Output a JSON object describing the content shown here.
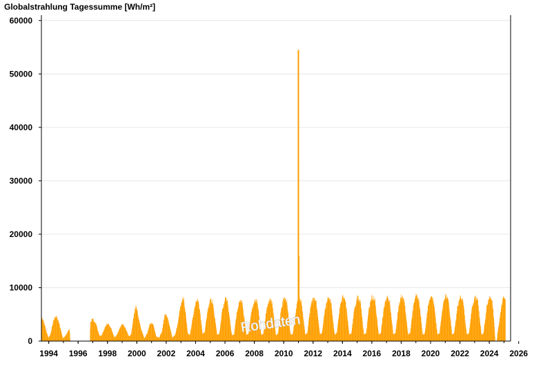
{
  "chart_data": {
    "type": "bar",
    "title": "Globalstrahlung Tagessumme [Wh/m²]",
    "watermark": "Rohdaten",
    "color": "#ff9f00",
    "gridline_color": "#e6e6e6",
    "xlim": [
      1993.5,
      2025.45
    ],
    "ylim": [
      0,
      61000
    ],
    "x_ticks": [
      1994,
      1996,
      1998,
      2000,
      2002,
      2004,
      2006,
      2008,
      2010,
      2012,
      2014,
      2016,
      2018,
      2020,
      2022,
      2024,
      2026
    ],
    "x_tick_labels": [
      "1994",
      "1996",
      "1998",
      "2000",
      "2002",
      "2004",
      "2006",
      "2008",
      "2010",
      "2012",
      "2014",
      "2016",
      "2018",
      "2020",
      "2022",
      "2024",
      "2026"
    ],
    "y_ticks": [
      0,
      10000,
      20000,
      30000,
      40000,
      50000,
      60000
    ],
    "y_tick_labels": [
      "0",
      "10000",
      "20000",
      "30000",
      "40000",
      "50000",
      "60000"
    ],
    "grid": true,
    "series": [
      {
        "values": [
          [
            1993.5,
            4500
          ],
          [
            1993.7,
            3200
          ],
          [
            1993.95,
            600
          ],
          [
            1994.1,
            1200
          ],
          [
            1994.3,
            3800
          ],
          [
            1994.5,
            4600
          ],
          [
            1994.7,
            3300
          ],
          [
            1994.95,
            500
          ],
          [
            1995.1,
            900
          ],
          [
            1995.3,
            1800
          ],
          [
            1995.4,
            2300
          ],
          [
            1995.45,
            0
          ],
          [
            1996.8,
            0
          ],
          [
            1996.82,
            3500
          ],
          [
            1996.95,
            4200
          ],
          [
            1997.2,
            3200
          ],
          [
            1997.45,
            900
          ],
          [
            1997.6,
            1100
          ],
          [
            1997.8,
            2500
          ],
          [
            1998.0,
            3400
          ],
          [
            1998.2,
            2600
          ],
          [
            1998.45,
            700
          ],
          [
            1998.6,
            1000
          ],
          [
            1998.8,
            2300
          ],
          [
            1999.0,
            3200
          ],
          [
            1999.2,
            2500
          ],
          [
            1999.45,
            800
          ],
          [
            1999.6,
            1300
          ],
          [
            1999.85,
            5800
          ],
          [
            1999.95,
            6600
          ],
          [
            2000.1,
            4500
          ],
          [
            2000.25,
            2400
          ],
          [
            2000.5,
            500
          ],
          [
            2000.7,
            1500
          ],
          [
            2000.9,
            3400
          ],
          [
            2001.1,
            3100
          ],
          [
            2001.3,
            900
          ],
          [
            2001.5,
            600
          ],
          [
            2001.7,
            1800
          ],
          [
            2001.9,
            5100
          ],
          [
            2002.1,
            4200
          ],
          [
            2002.4,
            600
          ],
          [
            2002.6,
            1200
          ],
          [
            2002.8,
            3600
          ],
          [
            2002.95,
            6600
          ],
          [
            2003.1,
            7900
          ],
          [
            2003.2,
            7700
          ],
          [
            2003.45,
            1500
          ],
          [
            2003.6,
            1100
          ],
          [
            2003.8,
            4400
          ],
          [
            2004.0,
            7300
          ],
          [
            2004.15,
            7700
          ],
          [
            2004.3,
            5200
          ],
          [
            2004.45,
            1400
          ],
          [
            2004.6,
            1600
          ],
          [
            2004.8,
            5500
          ],
          [
            2005.0,
            7700
          ],
          [
            2005.15,
            7300
          ],
          [
            2005.45,
            1200
          ],
          [
            2005.6,
            1300
          ],
          [
            2005.8,
            5600
          ],
          [
            2006.0,
            7900
          ],
          [
            2006.15,
            7500
          ],
          [
            2006.45,
            1100
          ],
          [
            2006.6,
            1200
          ],
          [
            2006.8,
            5400
          ],
          [
            2007.0,
            7600
          ],
          [
            2007.15,
            7400
          ],
          [
            2007.45,
            1100
          ],
          [
            2007.6,
            1400
          ],
          [
            2007.8,
            5600
          ],
          [
            2008.0,
            7700
          ],
          [
            2008.2,
            7400
          ],
          [
            2008.45,
            1200
          ],
          [
            2008.6,
            1300
          ],
          [
            2008.8,
            5600
          ],
          [
            2009.0,
            7800
          ],
          [
            2009.2,
            7200
          ],
          [
            2009.45,
            1100
          ],
          [
            2009.6,
            1400
          ],
          [
            2009.8,
            5800
          ],
          [
            2010.0,
            8200
          ],
          [
            2010.2,
            7400
          ],
          [
            2010.45,
            1200
          ],
          [
            2010.6,
            1300
          ],
          [
            2010.8,
            5300
          ],
          [
            2010.95,
            7700
          ],
          [
            2011.0,
            54500
          ],
          [
            2011.05,
            7900
          ],
          [
            2011.2,
            7200
          ],
          [
            2011.45,
            1200
          ],
          [
            2011.6,
            1600
          ],
          [
            2011.8,
            6200
          ],
          [
            2012.0,
            8100
          ],
          [
            2012.2,
            7400
          ],
          [
            2012.45,
            1300
          ],
          [
            2012.6,
            1500
          ],
          [
            2012.8,
            5900
          ],
          [
            2013.0,
            8000
          ],
          [
            2013.2,
            7500
          ],
          [
            2013.45,
            1200
          ],
          [
            2013.6,
            1500
          ],
          [
            2013.8,
            6100
          ],
          [
            2014.0,
            8300
          ],
          [
            2014.2,
            7600
          ],
          [
            2014.45,
            1200
          ],
          [
            2014.6,
            1500
          ],
          [
            2014.8,
            6000
          ],
          [
            2015.0,
            8200
          ],
          [
            2015.2,
            7500
          ],
          [
            2015.45,
            1200
          ],
          [
            2015.6,
            1500
          ],
          [
            2015.8,
            6200
          ],
          [
            2016.0,
            8300
          ],
          [
            2016.2,
            7600
          ],
          [
            2016.45,
            1200
          ],
          [
            2016.6,
            1500
          ],
          [
            2016.8,
            6000
          ],
          [
            2017.0,
            8200
          ],
          [
            2017.2,
            7500
          ],
          [
            2017.45,
            1200
          ],
          [
            2017.6,
            1500
          ],
          [
            2017.8,
            6100
          ],
          [
            2018.0,
            8400
          ],
          [
            2018.2,
            7600
          ],
          [
            2018.45,
            1200
          ],
          [
            2018.6,
            1500
          ],
          [
            2018.8,
            6200
          ],
          [
            2019.0,
            8500
          ],
          [
            2019.2,
            7700
          ],
          [
            2019.45,
            1200
          ],
          [
            2019.6,
            1500
          ],
          [
            2019.8,
            6100
          ],
          [
            2020.0,
            8300
          ],
          [
            2020.2,
            7500
          ],
          [
            2020.45,
            1200
          ],
          [
            2020.6,
            1500
          ],
          [
            2020.8,
            6300
          ],
          [
            2021.0,
            8500
          ],
          [
            2021.2,
            7700
          ],
          [
            2021.45,
            1200
          ],
          [
            2021.6,
            1500
          ],
          [
            2021.8,
            6000
          ],
          [
            2022.0,
            8200
          ],
          [
            2022.2,
            7500
          ],
          [
            2022.45,
            1200
          ],
          [
            2022.6,
            1500
          ],
          [
            2022.8,
            6100
          ],
          [
            2023.0,
            8300
          ],
          [
            2023.2,
            7600
          ],
          [
            2023.45,
            1200
          ],
          [
            2023.6,
            1500
          ],
          [
            2023.8,
            6200
          ],
          [
            2024.0,
            8400
          ],
          [
            2024.2,
            7500
          ],
          [
            2024.35,
            2000
          ],
          [
            2024.4,
            0
          ],
          [
            2024.5,
            0
          ],
          [
            2024.55,
            1500
          ],
          [
            2024.8,
            6200
          ],
          [
            2024.95,
            8200
          ],
          [
            2025.1,
            7800
          ]
        ]
      }
    ]
  }
}
